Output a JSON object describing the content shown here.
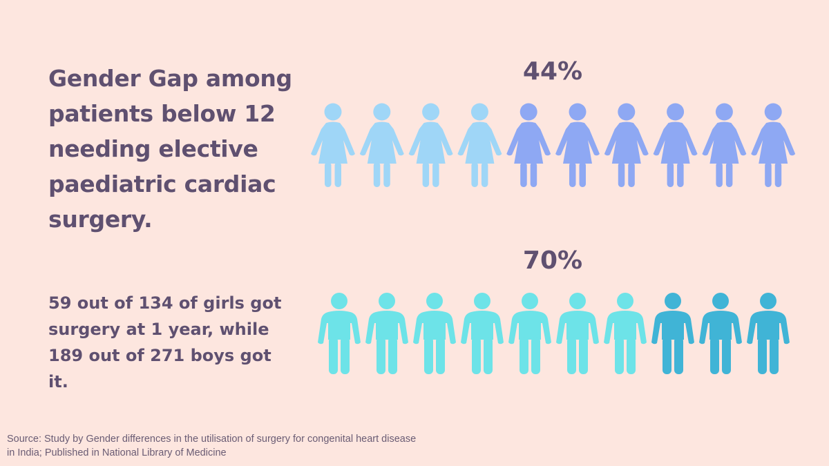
{
  "title": "Gender Gap among patients below 12 needing elective paediatric cardiac surgery.",
  "subtitle": "59 out of 134 of girls got surgery at 1 year, while 189 out of 271 boys got it.",
  "source": "Source: Study by Gender differences in the utilisation of surgery for congenital heart disease in India; Published in National Library of Medicine",
  "chart_data": {
    "type": "pictogram",
    "series": [
      {
        "name": "girls",
        "label": "44%",
        "icon": "female-person-icon",
        "total_icons": 10,
        "highlighted_icons": 6,
        "highlight_position": "right",
        "base_color": "#9fd6f7",
        "highlight_color": "#8ea8f3"
      },
      {
        "name": "boys",
        "label": "70%",
        "icon": "male-person-icon",
        "total_icons": 10,
        "highlighted_icons": 7,
        "highlight_position": "left",
        "base_color": "#40b4d6",
        "highlight_color": "#6de3e8"
      }
    ]
  }
}
